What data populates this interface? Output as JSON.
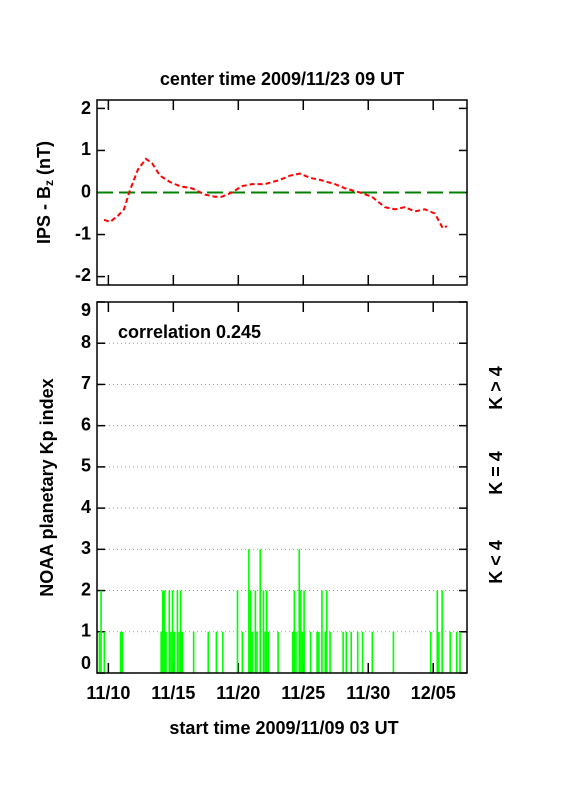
{
  "chart_data": [
    {
      "type": "line",
      "title": "center time 2009/11/23 09 UT",
      "y_label": {
        "text": "IPS - B",
        "subscript": "z",
        "suffix": " (nT)"
      },
      "x": [
        9.66,
        10.13,
        10.74,
        11.2,
        11.66,
        12.28,
        12.89,
        13.36,
        13.97,
        14.74,
        15.51,
        16.43,
        17.43,
        18.2,
        18.74,
        19.51,
        20.28,
        21.05,
        22.05,
        23.2,
        23.97,
        24.74,
        25.51,
        26.28,
        27.43,
        28.2,
        29.36,
        30.28,
        31.28,
        32.05,
        32.82,
        33.59,
        34.36,
        35.13,
        35.74,
        36.05
      ],
      "series": [
        {
          "color": "#ff0000",
          "values": [
            -0.65,
            -0.7,
            -0.55,
            -0.4,
            0.05,
            0.55,
            0.8,
            0.7,
            0.4,
            0.25,
            0.15,
            0.1,
            -0.05,
            -0.1,
            -0.1,
            0,
            0.15,
            0.2,
            0.2,
            0.3,
            0.4,
            0.45,
            0.35,
            0.3,
            0.2,
            0.1,
            0,
            -0.1,
            -0.35,
            -0.4,
            -0.35,
            -0.45,
            -0.4,
            -0.5,
            -0.85,
            -0.8
          ]
        }
      ],
      "reference_line": {
        "value": 0,
        "color": "#008000"
      },
      "xlim": [
        9.125,
        37.6
      ],
      "xticks": [
        10,
        15,
        20,
        25,
        30,
        35
      ],
      "ylim": [
        -2.2,
        2.2
      ],
      "yticks": [
        -2,
        -1,
        0,
        1,
        2
      ]
    },
    {
      "type": "bar",
      "y_label": "NOAA planetary Kp index",
      "x_label": "start time 2009/11/09 03 UT",
      "annotation": "correlation 0.245",
      "color": "#00ff00",
      "grid": true,
      "x": [
        9.25,
        9.375,
        9.625,
        10.875,
        11.0,
        14.0,
        14.125,
        14.25,
        14.375,
        14.625,
        14.75,
        14.875,
        15.0,
        15.25,
        15.375,
        15.5,
        15.625,
        16.5,
        17.625,
        18.25,
        18.75,
        19.875,
        20.25,
        20.75,
        20.875,
        21.0,
        21.25,
        21.375,
        21.625,
        21.875,
        22.0,
        22.125,
        22.25,
        23.0,
        24.125,
        24.25,
        24.375,
        24.625,
        24.75,
        24.875,
        25.0,
        25.5,
        26.0,
        26.125,
        26.375,
        26.625,
        26.75,
        27.0,
        28.0,
        28.25,
        28.625,
        29.125,
        29.5,
        30.25,
        31.875,
        34.75,
        35.25,
        35.375,
        35.625,
        36.25,
        36.75,
        37.0
      ],
      "values": [
        1,
        2,
        1,
        1,
        1,
        1,
        2,
        2,
        1,
        2,
        1,
        2,
        1,
        2,
        1,
        2,
        1,
        1,
        1,
        1,
        1,
        2,
        1,
        3,
        2,
        1,
        2,
        1,
        3,
        2,
        1,
        2,
        1,
        1,
        1,
        2,
        1,
        3,
        2,
        1,
        2,
        1,
        1,
        1,
        2,
        1,
        2,
        1,
        1,
        1,
        1,
        1,
        1,
        1,
        1,
        1,
        2,
        1,
        2,
        1,
        1,
        1
      ],
      "xlim": [
        9.125,
        37.6
      ],
      "xticks": [
        {
          "value": 10,
          "label": "11/10"
        },
        {
          "value": 15,
          "label": "11/15"
        },
        {
          "value": 20,
          "label": "11/20"
        },
        {
          "value": 25,
          "label": "11/25"
        },
        {
          "value": 30,
          "label": "11/30"
        },
        {
          "value": 35,
          "label": "12/05"
        }
      ],
      "ylim": [
        0,
        9
      ],
      "yticks": [
        0,
        1,
        2,
        3,
        4,
        5,
        6,
        7,
        8,
        9
      ],
      "color_key": [
        {
          "label": "K < 4",
          "color": "#00ff00"
        },
        {
          "label": "K = 4",
          "color": "#ffd700"
        },
        {
          "label": "K > 4",
          "color": "#ff0000"
        }
      ]
    }
  ]
}
